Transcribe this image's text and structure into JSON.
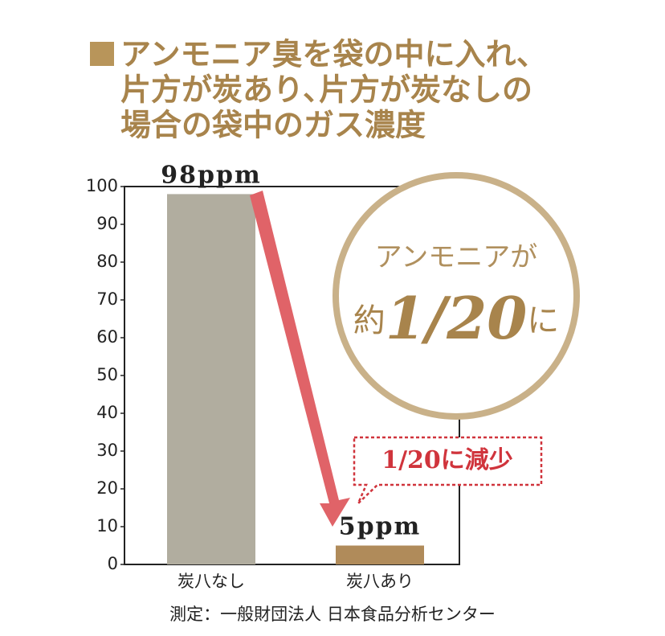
{
  "chart_data": {
    "type": "bar",
    "title_lines": [
      "アンモニア臭を袋の中に入れ、",
      "片方が炭あり､片方が炭なしの",
      "場合の袋中のガス濃度"
    ],
    "categories": [
      "炭八なし",
      "炭八あり"
    ],
    "values": [
      98,
      5
    ],
    "value_labels": [
      "98ppm",
      "5ppm"
    ],
    "colors": [
      "#b1ad9f",
      "#b08b5a"
    ],
    "ylim": [
      0,
      100
    ],
    "yticks": [
      0,
      10,
      20,
      30,
      40,
      50,
      60,
      70,
      80,
      90,
      100
    ],
    "annotations": {
      "circle_line1": "アンモニアが",
      "circle_prefix": "約",
      "circle_emphasis": "1/20",
      "circle_suffix": "に",
      "callout": "1/20に減少"
    },
    "source": "測定：一般財団法人 日本食品分析センター"
  }
}
